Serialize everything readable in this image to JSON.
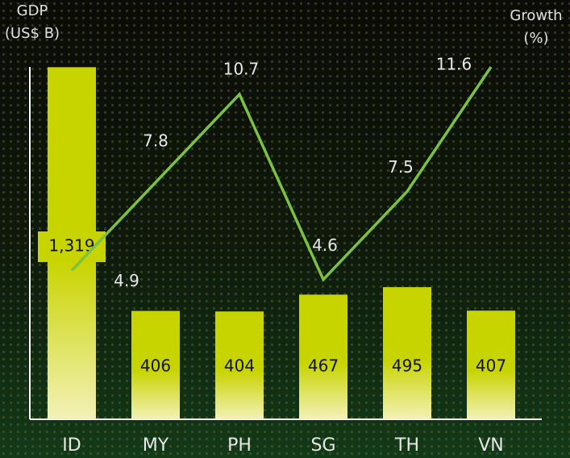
{
  "chart_data": {
    "type": "bar",
    "y_label": "GDP (US$ B)",
    "y2_label": "Growth (%)",
    "categories": [
      "ID",
      "MY",
      "PH",
      "SG",
      "TH",
      "VN"
    ],
    "series": [
      {
        "type": "bar",
        "color": "#c8d400",
        "values": [
          1319,
          406,
          404,
          467,
          495,
          407
        ],
        "value_labels": [
          "1,319",
          "406",
          "404",
          "467",
          "495",
          "407"
        ]
      },
      {
        "type": "line",
        "axis": "y2",
        "color": "#7dc142",
        "values": [
          4.9,
          7.8,
          10.7,
          4.6,
          7.5,
          11.6
        ]
      }
    ],
    "ylim": [
      0,
      1320
    ],
    "y2lim": [
      0,
      11.6
    ],
    "grid": false
  }
}
